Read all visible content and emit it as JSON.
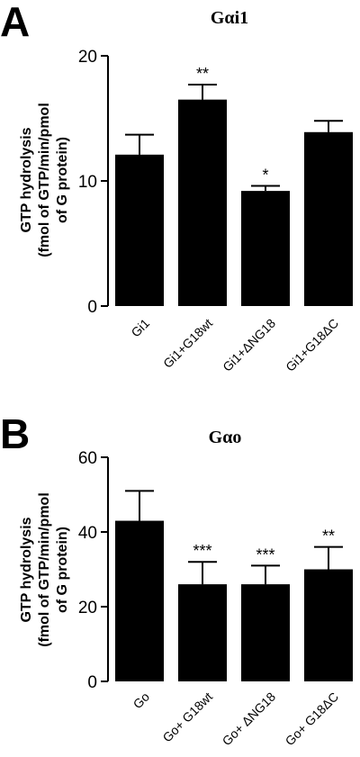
{
  "chart_data": [
    {
      "type": "bar",
      "panel": "A",
      "title": "Gαi1",
      "ylabel_lines": [
        "GTP hydrolysis",
        "(fmol of GTP/min/pmol",
        "of G protein)"
      ],
      "categories": [
        "Gi1",
        "Gi1+G18wt",
        "Gi1+ΔNG18",
        "Gi1+G18ΔC"
      ],
      "values": [
        12.1,
        16.5,
        9.2,
        13.9
      ],
      "errors": [
        1.6,
        1.2,
        0.4,
        0.9
      ],
      "significance": [
        "",
        "**",
        "*",
        ""
      ],
      "yticks": [
        0,
        10,
        20
      ],
      "ylim": [
        0,
        20
      ],
      "grid": false,
      "colors": {
        "bar": "#000000"
      }
    },
    {
      "type": "bar",
      "panel": "B",
      "title": "Gαo",
      "ylabel_lines": [
        "GTP hydrolysis",
        "(fmol of GTP/min/pmol",
        "of G protein)"
      ],
      "categories": [
        "Go",
        "Go+ G18wt",
        "Go+ ΔNG18",
        "Go+ G18ΔC"
      ],
      "values": [
        43,
        26,
        26,
        30
      ],
      "errors": [
        8,
        6,
        5,
        6
      ],
      "significance": [
        "",
        "***",
        "***",
        "**"
      ],
      "yticks": [
        0,
        20,
        40,
        60
      ],
      "ylim": [
        0,
        60
      ],
      "grid": false,
      "colors": {
        "bar": "#000000"
      }
    }
  ]
}
